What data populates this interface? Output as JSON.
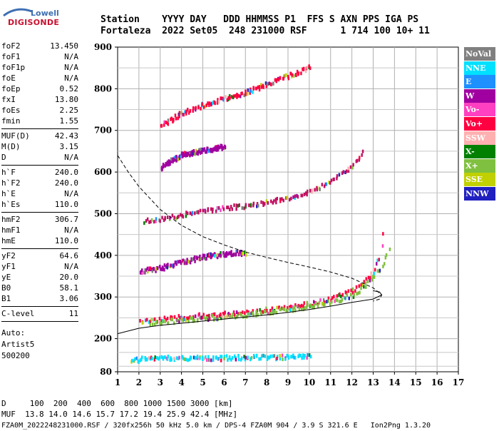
{
  "logo": {
    "line1": "Lowell",
    "line2": "DIGISONDE"
  },
  "header": {
    "line1": "Station    YYYY DAY   DDD HHMMSS P1  FFS S AXN PPS IGA PS",
    "line2": "Fortaleza  2022 Set05  248 231000 RSF      1 714 100 10+ 11"
  },
  "params": [
    {
      "key": "foF2",
      "value": "13.450"
    },
    {
      "key": "foF1",
      "value": "N/A"
    },
    {
      "key": "foF1p",
      "value": "N/A"
    },
    {
      "key": "foE",
      "value": "N/A"
    },
    {
      "key": "foEp",
      "value": "0.52"
    },
    {
      "key": "fxI",
      "value": "13.80"
    },
    {
      "key": "foEs",
      "value": "2.25"
    },
    {
      "key": "fmin",
      "value": "1.55"
    },
    {
      "key": "MUF(D)",
      "value": "42.43"
    },
    {
      "key": "M(D)",
      "value": "3.15"
    },
    {
      "key": "D",
      "value": "N/A"
    },
    {
      "key": "h`F",
      "value": "240.0"
    },
    {
      "key": "h`F2",
      "value": "240.0"
    },
    {
      "key": "h`E",
      "value": "N/A"
    },
    {
      "key": "h`Es",
      "value": "110.0"
    },
    {
      "key": "hmF2",
      "value": "306.7"
    },
    {
      "key": "hmF1",
      "value": "N/A"
    },
    {
      "key": "hmE",
      "value": "110.0"
    },
    {
      "key": "yF2",
      "value": "64.6"
    },
    {
      "key": "yF1",
      "value": "N/A"
    },
    {
      "key": "yE",
      "value": "20.0"
    },
    {
      "key": "B0",
      "value": "58.1"
    },
    {
      "key": "B1",
      "value": "3.06"
    },
    {
      "key": "C-level",
      "value": "11"
    }
  ],
  "autoscale": [
    "Auto:",
    "Artist5",
    "500200"
  ],
  "legend": [
    {
      "label": "NoVal",
      "color": "#808080"
    },
    {
      "label": "NNE",
      "color": "#00e0ff"
    },
    {
      "label": "E",
      "color": "#1e90ff"
    },
    {
      "label": "W",
      "color": "#a000a0"
    },
    {
      "label": "Vo-",
      "color": "#ff40c0"
    },
    {
      "label": "Vo+",
      "color": "#ff0040"
    },
    {
      "label": "SSW",
      "color": "#ffb0b0"
    },
    {
      "label": "X-",
      "color": "#008000"
    },
    {
      "label": "X+",
      "color": "#80c040"
    },
    {
      "label": "SSE",
      "color": "#c0d000"
    },
    {
      "label": "NNW",
      "color": "#2020c0"
    }
  ],
  "footer": {
    "line1": "D     100  200  400  600  800 1000 1500 3000 [km]",
    "line2": "MUF  13.8 14.0 14.6 15.7 17.2 19.4 25.9 42.4 [MHz]",
    "line3": "FZA0M_2022248231000.RSF / 320fx256h 50 kHz 5.0 km / DPS-4 FZA0M 904 / 3.9 S 321.6 E   Ion2Png 1.3.20"
  },
  "chart_data": {
    "type": "scatter",
    "xlim": [
      1,
      17
    ],
    "ylim": [
      80,
      900
    ],
    "xticks": [
      "1",
      "2",
      "3",
      "4",
      "5",
      "6",
      "7",
      "8",
      "9",
      "10",
      "11",
      "12",
      "13",
      "14",
      "15",
      "16",
      "17"
    ],
    "yticks": [
      "80",
      "200",
      "300",
      "400",
      "500",
      "600",
      "700",
      "800",
      "900"
    ],
    "traces": [
      {
        "name": "F2 O-trace",
        "color": "#ff0040",
        "x": [
          2.0,
          2.5,
          3.0,
          4.0,
          5.0,
          6.0,
          7.0,
          8.0,
          9.0,
          10.0,
          11.0,
          12.0,
          12.5,
          13.0,
          13.3,
          13.45
        ],
        "y": [
          240,
          243,
          245,
          250,
          254,
          258,
          263,
          268,
          274,
          282,
          293,
          313,
          333,
          363,
          393,
          450
        ]
      },
      {
        "name": "F2 X-trace",
        "color": "#80c040",
        "x": [
          2.5,
          3.0,
          4.0,
          5.0,
          6.0,
          7.0,
          8.0,
          9.0,
          10.0,
          11.0,
          12.0,
          12.5,
          13.0,
          13.4,
          13.7
        ],
        "y": [
          235,
          238,
          243,
          247,
          252,
          256,
          262,
          268,
          276,
          286,
          303,
          320,
          347,
          375,
          410
        ]
      },
      {
        "name": "Es trace",
        "color": "#00e0ff",
        "x": [
          1.6,
          2.0,
          2.5,
          3.0,
          3.5,
          4.0,
          4.5,
          5.0,
          5.5,
          6.0,
          7.0,
          8.0,
          9.0,
          10.0
        ],
        "y": [
          118,
          122,
          128,
          130,
          128,
          125,
          127,
          130,
          125,
          128,
          130,
          130,
          132,
          132
        ]
      },
      {
        "name": "2F2 trace",
        "color": "#c01060",
        "x": [
          2.2,
          3.0,
          4.0,
          5.0,
          6.0,
          7.0,
          8.0,
          9.0,
          10.0,
          11.0,
          12.0,
          12.5
        ],
        "y": [
          480,
          485,
          495,
          505,
          512,
          518,
          526,
          537,
          550,
          575,
          615,
          645
        ]
      },
      {
        "name": "2nd hop F2 low",
        "color": "#a000a0",
        "x": [
          2.0,
          3.0,
          4.0,
          5.0,
          6.0,
          7.0
        ],
        "y": [
          360,
          368,
          382,
          395,
          402,
          405
        ]
      },
      {
        "name": "3F2 trace",
        "color": "#ff0040",
        "x": [
          3.0,
          3.5,
          4.0,
          5.0,
          6.0,
          7.0,
          8.0,
          9.0,
          10.0
        ],
        "y": [
          710,
          725,
          740,
          760,
          775,
          790,
          810,
          830,
          850
        ]
      },
      {
        "name": "multi trace 600",
        "color": "#a000a0",
        "x": [
          3.0,
          3.5,
          4.0,
          5.0,
          6.0
        ],
        "y": [
          610,
          625,
          640,
          650,
          660
        ]
      }
    ],
    "profiles": [
      {
        "name": "electron density profile (dashed)",
        "style": "dashed",
        "x": [
          1.0,
          1.5,
          2.0,
          3.0,
          4.0,
          5.0,
          6.0,
          7.0,
          8.0,
          9.0,
          10.0,
          11.0,
          12.0,
          13.0,
          13.4,
          13.3,
          13.0
        ],
        "y": [
          640,
          600,
          565,
          510,
          472,
          445,
          425,
          408,
          395,
          383,
          372,
          360,
          345,
          322,
          305,
          295,
          290
        ]
      },
      {
        "name": "true height profile (solid)",
        "style": "solid",
        "x": [
          1.0,
          2.0,
          3.0,
          4.0,
          5.0,
          6.0,
          7.0,
          8.0,
          9.0,
          10.0,
          11.0,
          12.0,
          13.0,
          13.4,
          13.3,
          13.0
        ],
        "y": [
          212,
          225,
          232,
          237,
          242,
          247,
          252,
          257,
          263,
          270,
          278,
          287,
          295,
          305,
          312,
          315
        ]
      }
    ]
  }
}
